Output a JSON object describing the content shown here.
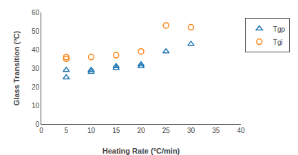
{
  "chart_data": {
    "type": "scatter",
    "xlabel": "Heating Rate (°C/min)",
    "ylabel": "Glass Transition (°C)",
    "series": [
      {
        "name": "Tgp",
        "marker": "triangle",
        "x": [
          5,
          5,
          10,
          10,
          15,
          15,
          20,
          20,
          25,
          30
        ],
        "values": [
          25,
          29,
          28,
          29,
          30,
          31,
          31,
          32,
          39,
          43
        ]
      },
      {
        "name": "Tgi",
        "marker": "circle",
        "x": [
          5,
          5,
          10,
          15,
          20,
          25,
          30
        ],
        "values": [
          35,
          36,
          36,
          37,
          39,
          53,
          52
        ]
      }
    ],
    "xlim": [
      0,
      40
    ],
    "ylim": [
      0,
      60
    ],
    "xticks": [
      0,
      5,
      10,
      15,
      20,
      25,
      30,
      35,
      40
    ],
    "yticks": [
      0,
      10,
      20,
      30,
      40,
      50,
      60
    ],
    "grid": false,
    "legend": "right"
  }
}
